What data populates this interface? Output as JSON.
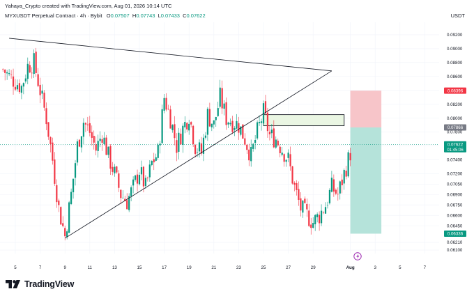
{
  "header": {
    "credit": "Yahaya_Crypto created with TradingView.com, Aug 01, 2026 10:14 UTC",
    "symbol": "MYXUSDT Perpetual Contract · 4h · Bybit",
    "ohlc": {
      "o_label": "O",
      "o": "0.07507",
      "h_label": "H",
      "h": "0.07743",
      "l_label": "L",
      "l": "0.07433",
      "c_label": "C",
      "c": "0.07622"
    },
    "currency": "USDT"
  },
  "footer": {
    "brand": "TradingView"
  },
  "colors": {
    "up": "#089981",
    "down": "#F23645",
    "stop_zone": "#F7C5C9",
    "target_zone": "#B5E3DA",
    "resistance_zone": "#EAF6E3",
    "line": "#131722"
  },
  "chart_data": {
    "type": "candlestick",
    "symbol": "MYXUSDT",
    "interval": "4h",
    "ylim": [
      0.0605,
      0.093
    ],
    "y_ticks": [
      "0.09200",
      "0.09000",
      "0.08800",
      "0.08600",
      "0.08400",
      "0.08200",
      "0.08000",
      "0.07800",
      "0.07600",
      "0.07400",
      "0.07200",
      "0.07050",
      "0.06900",
      "0.06750",
      "0.06600",
      "0.06450",
      "0.06210",
      "0.06100"
    ],
    "x_ticks": [
      "5",
      "7",
      "9",
      "11",
      "13",
      "15",
      "17",
      "19",
      "21",
      "23",
      "25",
      "27",
      "29",
      "Aug",
      "3",
      "5",
      "7"
    ],
    "price_labels": [
      {
        "value": 0.08396,
        "text": "0.08396",
        "kind": "stop"
      },
      {
        "value": 0.07866,
        "text": "0.07866",
        "kind": "entry"
      },
      {
        "value": 0.07622,
        "text": "0.07622",
        "sub": "01:45:06",
        "kind": "last"
      },
      {
        "value": 0.06336,
        "text": "0.06336",
        "kind": "target"
      }
    ],
    "trendlines": [
      {
        "name": "descending resistance",
        "from": [
          "Jul 4 12:00",
          0.0915
        ],
        "to": [
          "Jul 30 12:00",
          0.0868
        ]
      },
      {
        "name": "ascending support",
        "from": [
          "Jul 9",
          0.0627
        ],
        "to": [
          "Jul 30 12:00",
          0.0868
        ]
      }
    ],
    "zones": [
      {
        "name": "resistance box",
        "x": [
          "Jul 25",
          "Jul 31 12:00"
        ],
        "y": [
          0.0789,
          0.0805
        ]
      },
      {
        "name": "short stop",
        "x": [
          "Aug 1",
          "Aug 3 12:00"
        ],
        "y": [
          0.07866,
          0.08396
        ]
      },
      {
        "name": "short target",
        "x": [
          "Aug 1",
          "Aug 3 12:00"
        ],
        "y": [
          0.06336,
          0.07866
        ]
      }
    ],
    "close_path": [
      [
        "Jul 4",
        0.087
      ],
      [
        "Jul 4 12:00",
        0.086
      ],
      [
        "Jul 5 12:00",
        0.0845
      ],
      [
        "Jul 6",
        0.0875
      ],
      [
        "Jul 6 12:00",
        0.088
      ],
      [
        "Jul 7",
        0.084
      ],
      [
        "Jul 7 12:00",
        0.08
      ],
      [
        "Jul 8",
        0.074
      ],
      [
        "Jul 8 12:00",
        0.067
      ],
      [
        "Jul 9",
        0.063
      ],
      [
        "Jul 9 12:00",
        0.069
      ],
      [
        "Jul 10",
        0.076
      ],
      [
        "Jul 10 12:00",
        0.0795
      ],
      [
        "Jul 11",
        0.078
      ],
      [
        "Jul 11 12:00",
        0.0755
      ],
      [
        "Jul 12",
        0.0778
      ],
      [
        "Jul 12 12:00",
        0.0745
      ],
      [
        "Jul 13",
        0.072
      ],
      [
        "Jul 13 12:00",
        0.069
      ],
      [
        "Jul 14",
        0.068
      ],
      [
        "Jul 14 12:00",
        0.07
      ],
      [
        "Jul 15",
        0.0725
      ],
      [
        "Jul 15 12:00",
        0.07
      ],
      [
        "Jul 16",
        0.0735
      ],
      [
        "Jul 16 12:00",
        0.075
      ],
      [
        "Jul 17",
        0.083
      ],
      [
        "Jul 17 12:00",
        0.08
      ],
      [
        "Jul 18",
        0.076
      ],
      [
        "Jul 18 12:00",
        0.0785
      ],
      [
        "Jul 19",
        0.0805
      ],
      [
        "Jul 19 12:00",
        0.076
      ],
      [
        "Jul 20",
        0.075
      ],
      [
        "Jul 20 12:00",
        0.0805
      ],
      [
        "Jul 21",
        0.079
      ],
      [
        "Jul 21 12:00",
        0.083
      ],
      [
        "Jul 22",
        0.08
      ],
      [
        "Jul 22 12:00",
        0.0795
      ],
      [
        "Jul 23",
        0.079
      ],
      [
        "Jul 23 12:00",
        0.077
      ],
      [
        "Jul 24",
        0.0745
      ],
      [
        "Jul 24 12:00",
        0.078
      ],
      [
        "Jul 25",
        0.0808
      ],
      [
        "Jul 25 12:00",
        0.0775
      ],
      [
        "Jul 26",
        0.077
      ],
      [
        "Jul 26 12:00",
        0.0755
      ],
      [
        "Jul 27",
        0.074
      ],
      [
        "Jul 27 12:00",
        0.07
      ],
      [
        "Jul 28",
        0.067
      ],
      [
        "Jul 28 12:00",
        0.066
      ],
      [
        "Jul 29",
        0.065
      ],
      [
        "Jul 29 12:00",
        0.066
      ],
      [
        "Jul 30",
        0.0675
      ],
      [
        "Jul 30 12:00",
        0.07
      ],
      [
        "Jul 31",
        0.069
      ],
      [
        "Jul 31 12:00",
        0.072
      ],
      [
        "Aug 1",
        0.075
      ],
      [
        "Aug 1 02:00",
        0.0762
      ]
    ]
  }
}
